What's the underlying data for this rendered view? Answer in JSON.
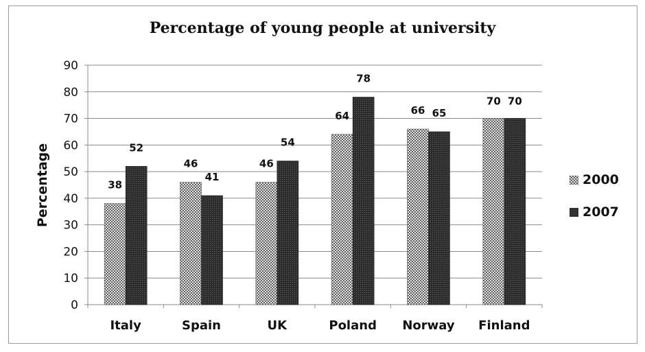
{
  "chart_data": {
    "type": "bar",
    "title": "Percentage of young people at university",
    "xlabel": "",
    "ylabel": "Percentage",
    "categories": [
      "Italy",
      "Spain",
      "UK",
      "Poland",
      "Norway",
      "Finland"
    ],
    "series": [
      {
        "name": "2000",
        "values": [
          38,
          46,
          46,
          64,
          66,
          70
        ]
      },
      {
        "name": "2007",
        "values": [
          52,
          41,
          54,
          78,
          65,
          70
        ]
      }
    ],
    "ylim": [
      0,
      90
    ],
    "yticks": [
      0,
      10,
      20,
      30,
      40,
      50,
      60,
      70,
      80,
      90
    ],
    "grid": true,
    "legend_position": "right"
  },
  "colors": {
    "series_2000": "#b8b8b8",
    "series_2007": "#3a3a3a",
    "grid": "#8a8a8a",
    "text": "#111111"
  }
}
